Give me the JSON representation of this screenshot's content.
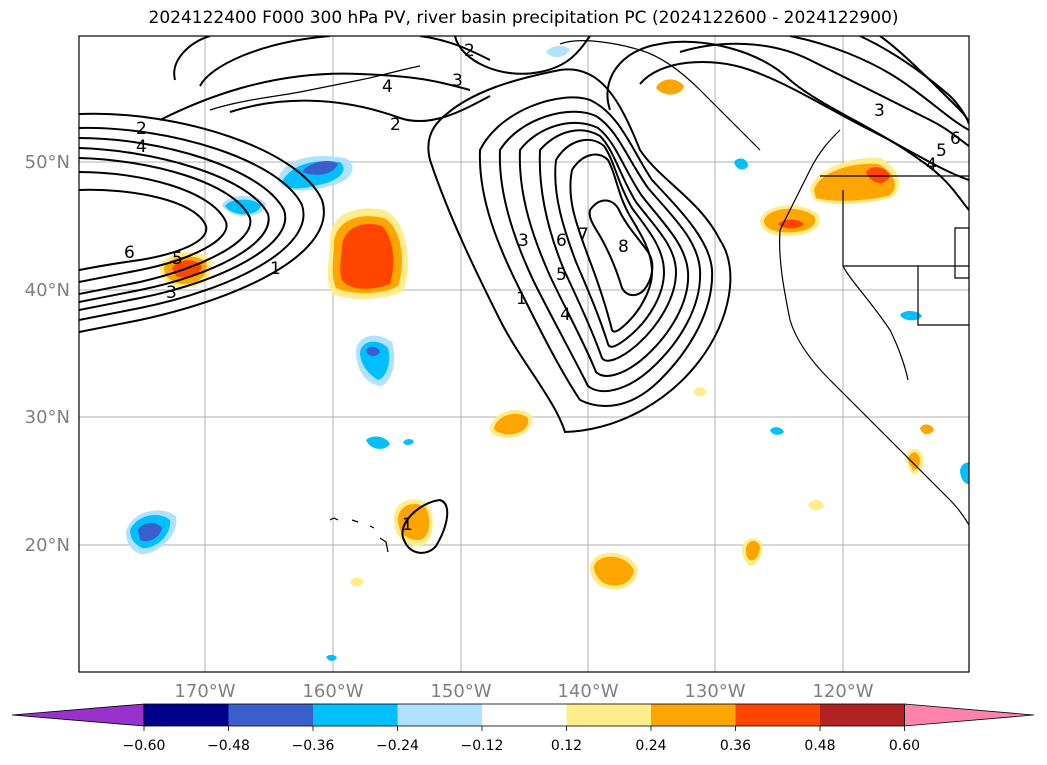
{
  "title": "2024122400 F000 300 hPa PV, river basin precipitation PC (2024122600 - 2024122900)",
  "lat_labels": [
    "50°N",
    "40°N",
    "30°N",
    "20°N"
  ],
  "lon_labels": [
    "170°W",
    "160°W",
    "150°W",
    "140°W",
    "130°W",
    "120°W"
  ],
  "pv_contour_labels": {
    "west": [
      "2",
      "4",
      "6",
      "5",
      "3",
      "1"
    ],
    "north": [
      "4",
      "3",
      "2",
      "2"
    ],
    "trough": [
      "3",
      "6",
      "7",
      "8",
      "5",
      "4",
      "1"
    ],
    "east": [
      "3",
      "6",
      "5",
      "4"
    ],
    "hawaii": [
      "1"
    ]
  },
  "colorbar": {
    "ticks": [
      "−0.60",
      "−0.48",
      "−0.36",
      "−0.24",
      "−0.12",
      "0.12",
      "0.24",
      "0.36",
      "0.48",
      "0.60"
    ],
    "colors": [
      "#9932cc",
      "#00008b",
      "#3a5fcd",
      "#00bfff",
      "#b0e2ff",
      "#ffffff",
      "#ffec8b",
      "#ffa500",
      "#ff4500",
      "#b22222",
      "#ff82ab"
    ]
  }
}
